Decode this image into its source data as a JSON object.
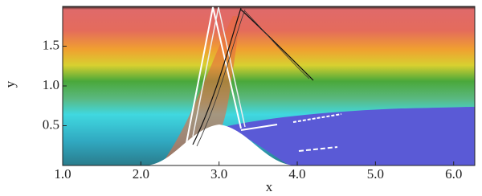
{
  "chart_data": {
    "type": "field",
    "x_label": "x",
    "y_label": "y",
    "xlim": [
      1.0,
      6.27
    ],
    "ylim": [
      0,
      2.0
    ],
    "xticks": [
      {
        "value": 1,
        "label": "1.0"
      },
      {
        "value": 2,
        "label": "2.0"
      },
      {
        "value": 3,
        "label": "3.0"
      },
      {
        "value": 4,
        "label": "4.0"
      },
      {
        "value": 5,
        "label": "5.0"
      },
      {
        "value": 6,
        "label": "6.0"
      }
    ],
    "yticks": [
      0.5,
      {
        "value": 1,
        "label": "1.0"
      },
      1.5
    ]
  }
}
